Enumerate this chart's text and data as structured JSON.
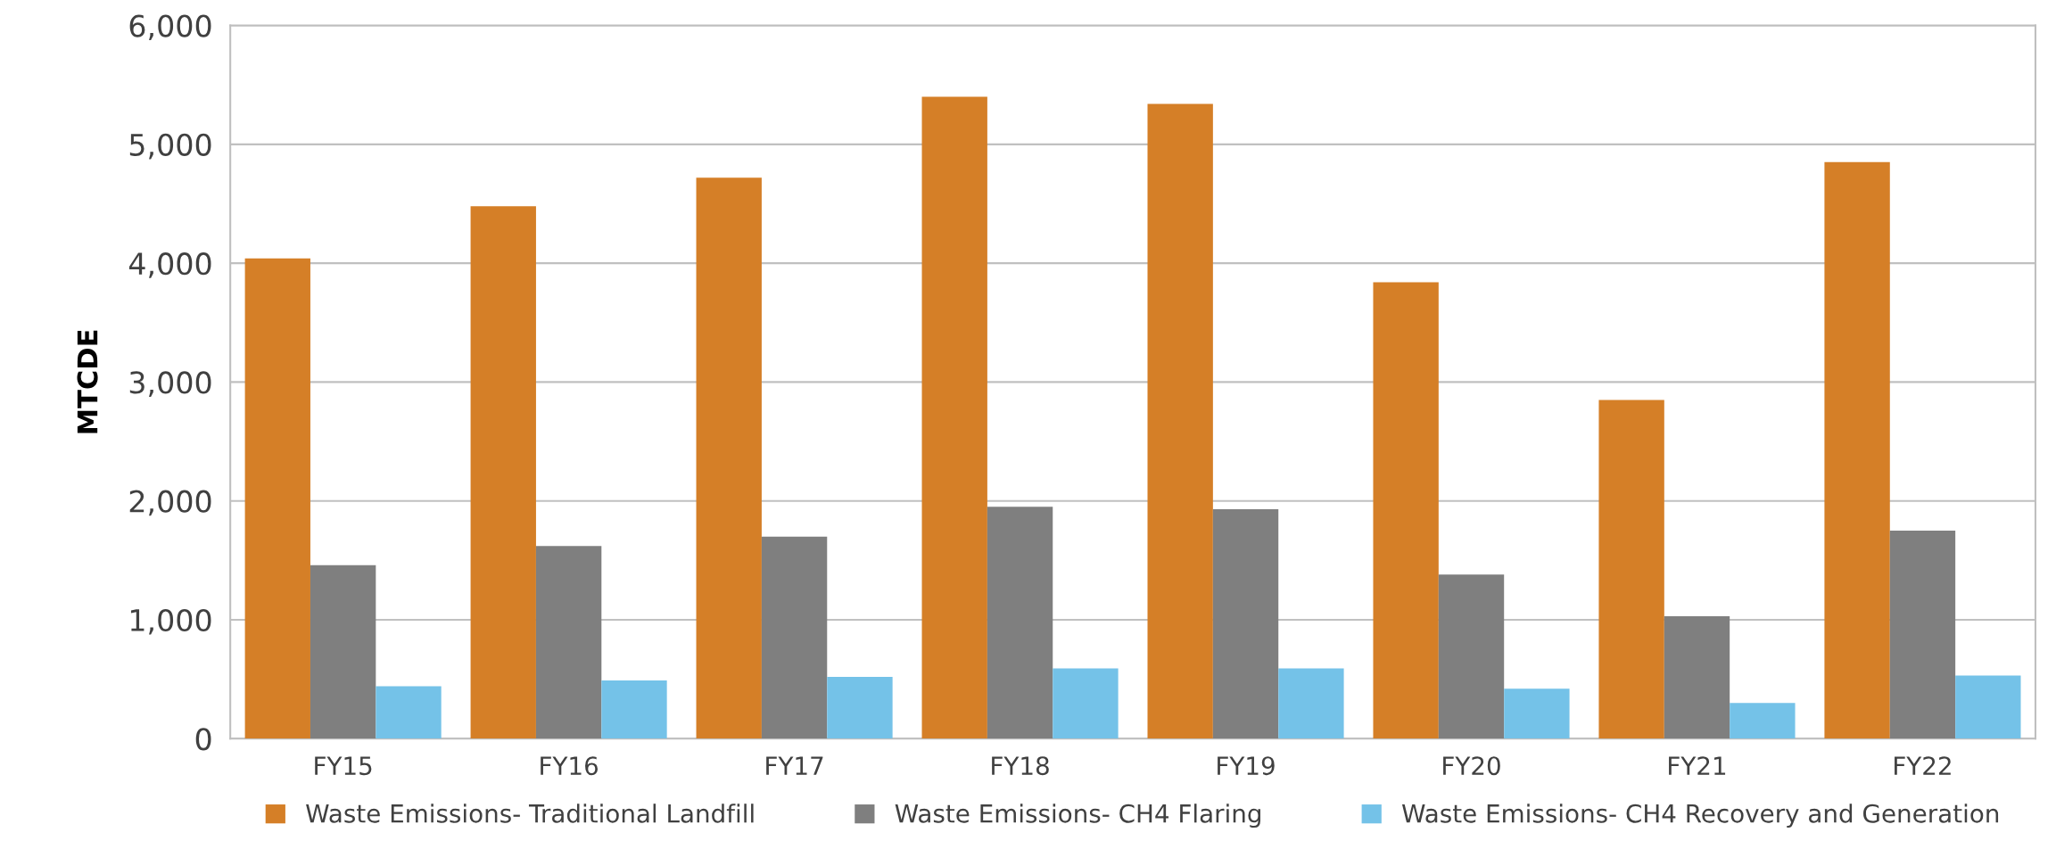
{
  "chart_data": {
    "type": "bar",
    "ylabel": "MTCDE",
    "categories": [
      "FY15",
      "FY16",
      "FY17",
      "FY18",
      "FY19",
      "FY20",
      "FY21",
      "FY22"
    ],
    "series": [
      {
        "name": "Waste Emissions- Traditional Landfill",
        "color": "#d57f27",
        "values": [
          4040,
          4480,
          4720,
          5400,
          5340,
          3840,
          2850,
          4850
        ]
      },
      {
        "name": "Waste Emissions- CH4 Flaring",
        "color": "#7f7f7f",
        "values": [
          1460,
          1620,
          1700,
          1950,
          1930,
          1380,
          1030,
          1750
        ]
      },
      {
        "name": "Waste Emissions- CH4 Recovery and Generation",
        "color": "#74c2e8",
        "values": [
          440,
          490,
          520,
          590,
          590,
          420,
          300,
          530
        ]
      }
    ],
    "ylim": [
      0,
      6000
    ],
    "yticks": [
      {
        "value": 0,
        "label": "0"
      },
      {
        "value": 1000,
        "label": "1,000"
      },
      {
        "value": 2000,
        "label": "2,000"
      },
      {
        "value": 3000,
        "label": "3,000"
      },
      {
        "value": 4000,
        "label": "4,000"
      },
      {
        "value": 5000,
        "label": "5,000"
      },
      {
        "value": 6000,
        "label": "6,000"
      }
    ],
    "grid": "y",
    "legend": "bottom"
  }
}
